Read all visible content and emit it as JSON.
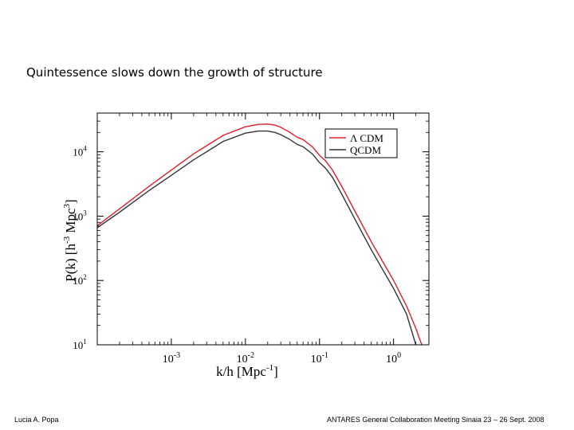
{
  "slide": {
    "title": "Quintessence slows down the growth of structure",
    "author": "Lucia A.  Popa",
    "event": "ANTARES General Collaboration Meeting   Sinaia 23 – 26 Sept. 2008"
  },
  "chart_data": {
    "type": "line",
    "title": "",
    "xlabel": "k/h [Mpc",
    "xlabel_sup": "-1",
    "xlabel_end": "]",
    "ylabel": "P(k) [h",
    "ylabel_sup": "-3",
    "ylabel_mid": " Mpc",
    "ylabel_sup2": "3",
    "ylabel_end": "]",
    "xscale": "log",
    "yscale": "log",
    "xlim": [
      0.0001,
      3
    ],
    "ylim": [
      10,
      40000
    ],
    "grid": false,
    "legend_position": "top-right",
    "x_ticks": [
      {
        "value": 0.001,
        "base": "10",
        "exp": "-3"
      },
      {
        "value": 0.01,
        "base": "10",
        "exp": "-2"
      },
      {
        "value": 0.1,
        "base": "10",
        "exp": "-1"
      },
      {
        "value": 1,
        "base": "10",
        "exp": "0"
      }
    ],
    "y_ticks": [
      {
        "value": 10,
        "base": "10",
        "exp": "1"
      },
      {
        "value": 100,
        "base": "10",
        "exp": "2"
      },
      {
        "value": 1000,
        "base": "10",
        "exp": "3"
      },
      {
        "value": 10000,
        "base": "10",
        "exp": "4"
      }
    ],
    "series": [
      {
        "name": "Λ CDM",
        "color": "#e0202a",
        "x": [
          0.0001,
          0.0002,
          0.0005,
          0.001,
          0.002,
          0.005,
          0.01,
          0.015,
          0.02,
          0.025,
          0.03,
          0.04,
          0.05,
          0.06,
          0.08,
          0.1,
          0.12,
          0.15,
          0.2,
          0.3,
          0.5,
          1,
          1.5,
          2,
          2.4
        ],
        "y": [
          710,
          1300,
          2900,
          5200,
          9300,
          18000,
          24500,
          26700,
          27000,
          26000,
          24000,
          20000,
          16800,
          15500,
          12000,
          8800,
          7300,
          5200,
          2900,
          1200,
          400,
          100,
          40,
          18,
          10
        ]
      },
      {
        "name": "QCDM",
        "color": "#333333",
        "x": [
          0.0001,
          0.0002,
          0.0005,
          0.001,
          0.002,
          0.005,
          0.01,
          0.015,
          0.02,
          0.025,
          0.03,
          0.04,
          0.05,
          0.06,
          0.08,
          0.1,
          0.12,
          0.15,
          0.2,
          0.3,
          0.5,
          1,
          1.5,
          2
        ],
        "y": [
          660,
          1150,
          2500,
          4300,
          7500,
          14500,
          19500,
          21000,
          21000,
          20000,
          18500,
          15500,
          13000,
          12000,
          9300,
          6800,
          5600,
          4000,
          2200,
          900,
          300,
          75,
          30,
          10
        ]
      }
    ]
  }
}
